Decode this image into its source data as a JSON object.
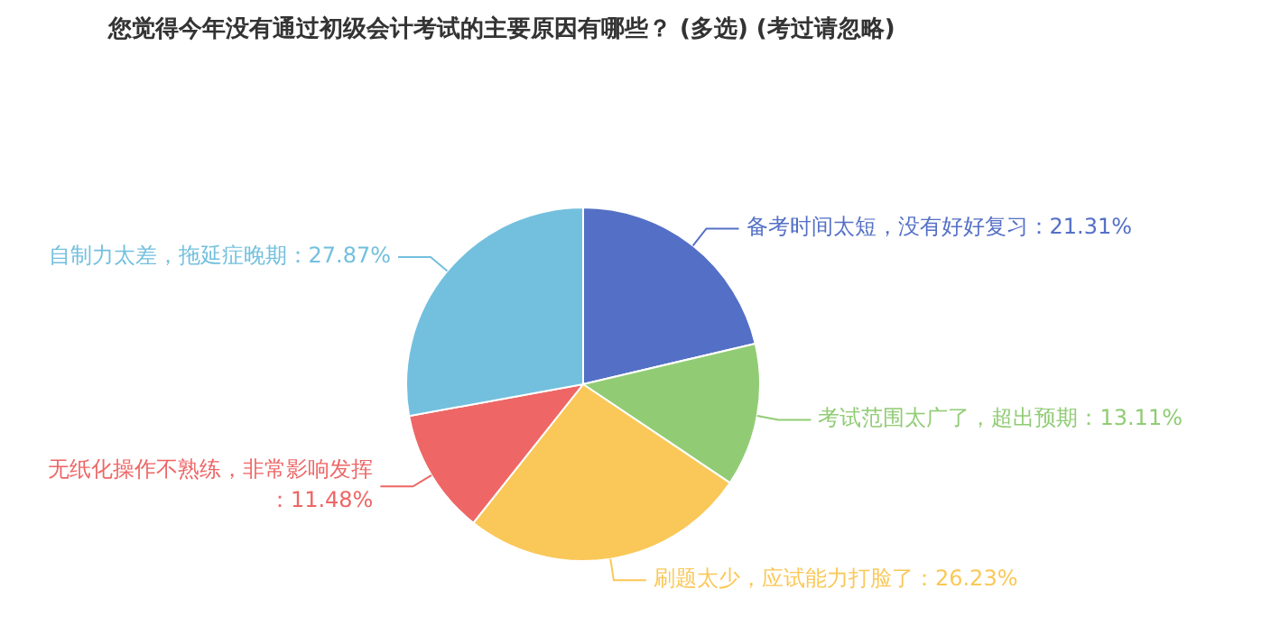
{
  "chart_data": {
    "type": "pie",
    "title": "您觉得今年没有通过初级会计考试的主要原因有哪些？ (多选) (考过请忽略)",
    "categories": [
      "备考时间太短，没有好好复习",
      "考试范围太广了，超出预期",
      "刷题太少，应试能力打脸了",
      "无纸化操作不熟练，非常影响发挥",
      "自制力太差，拖延症晚期"
    ],
    "values": [
      21.31,
      13.11,
      26.23,
      11.48,
      27.87
    ],
    "value_labels": [
      "：21.31%",
      "：13.11%",
      "：26.23%",
      "：11.48%",
      "：27.87%"
    ],
    "colors": [
      "#5470c6",
      "#91cc75",
      "#fac858",
      "#ee6666",
      "#73c0de"
    ],
    "legend": false
  }
}
